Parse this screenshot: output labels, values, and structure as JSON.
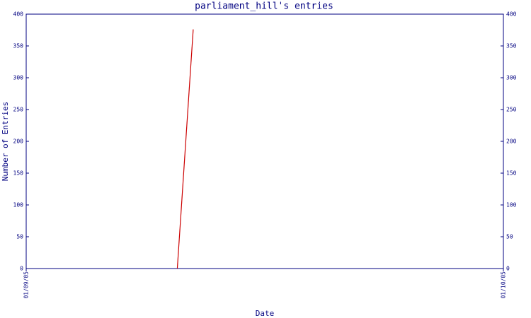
{
  "chart_data": {
    "type": "line",
    "title": "parliament_hill's entries",
    "x_label": "Date",
    "y_label": "Number of Entries",
    "x": [
      9.5,
      10.5
    ],
    "values": [
      0,
      376
    ],
    "color": "#cc0000",
    "xlim": [
      0,
      30
    ],
    "xticks": [
      {
        "value": 0,
        "label": "01/09/05"
      },
      {
        "value": 30,
        "label": "01/10/05"
      }
    ],
    "ylim": [
      0,
      400
    ],
    "yticks": [
      0,
      50,
      100,
      150,
      200,
      250,
      300,
      350,
      400
    ],
    "axis_color": "#000080"
  }
}
